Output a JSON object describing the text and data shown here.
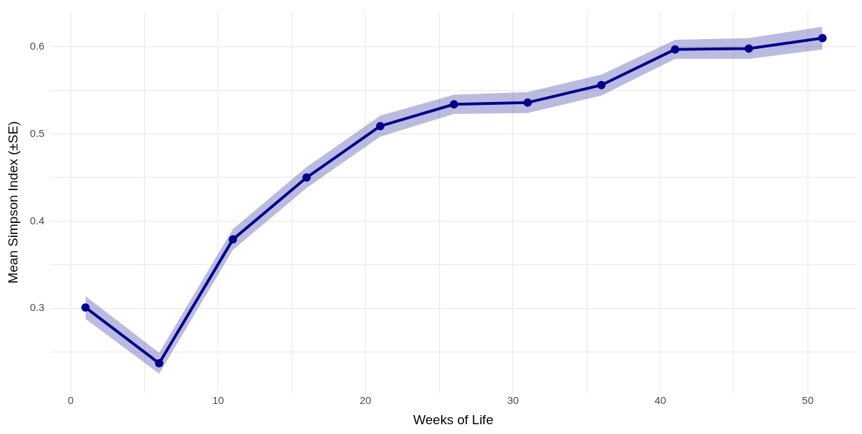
{
  "chart_data": {
    "type": "line",
    "xlabel": "Weeks of Life",
    "ylabel": "Mean Simpson Index (±SE)",
    "x": [
      1,
      6,
      11,
      16,
      21,
      26,
      31,
      36,
      41,
      46,
      51
    ],
    "series": [
      {
        "color": "#00008b",
        "values": [
          0.301,
          0.237,
          0.379,
          0.45,
          0.509,
          0.534,
          0.536,
          0.556,
          0.597,
          0.598,
          0.61
        ],
        "lower": [
          0.288,
          0.225,
          0.367,
          0.438,
          0.497,
          0.523,
          0.524,
          0.544,
          0.586,
          0.586,
          0.597
        ],
        "upper": [
          0.314,
          0.249,
          0.391,
          0.462,
          0.521,
          0.545,
          0.548,
          0.568,
          0.608,
          0.61,
          0.623
        ]
      }
    ],
    "xlim": [
      -1.4,
      53.3
    ],
    "ylim": [
      0.203,
      0.64
    ],
    "xticks": [
      0,
      {
        "value": 5,
        "label": null
      },
      10,
      {
        "value": 15,
        "label": null
      },
      20,
      {
        "value": 25,
        "label": null
      },
      30,
      {
        "value": 35,
        "label": null
      },
      40,
      {
        "value": 45,
        "label": null
      },
      50
    ],
    "yticks": [
      {
        "value": 0.25,
        "label": null
      },
      0.3,
      {
        "value": 0.35,
        "label": null
      },
      0.4,
      {
        "value": 0.45,
        "label": null
      },
      0.5,
      {
        "value": 0.55,
        "label": null
      },
      0.6
    ],
    "grid": true,
    "legend": false,
    "marker": "circle",
    "line_style": "solid"
  }
}
